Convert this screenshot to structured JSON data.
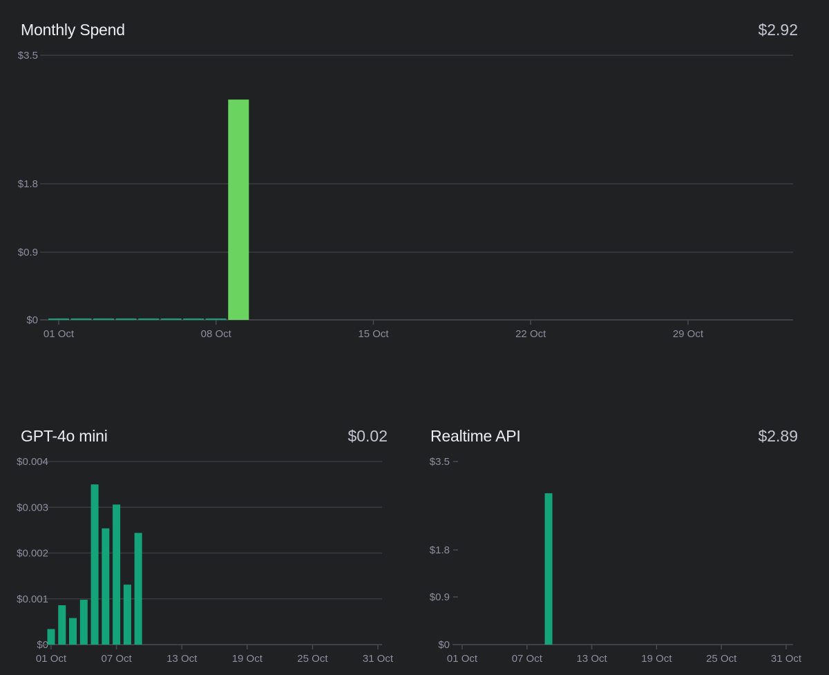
{
  "colors": {
    "background": "#202123",
    "grid": "#3a3b42",
    "axis": "#4a4b53",
    "tick_text": "#8e8ea0",
    "highlight_bar": "#6bd35f",
    "series_bar": "#15a37a"
  },
  "chart_data": [
    {
      "type": "bar",
      "title": "Monthly Spend",
      "total_label": "$2.92",
      "y_ticks": [
        "$0",
        "$0.9",
        "$1.8",
        "$3.5"
      ],
      "y_tick_values": [
        0,
        0.9,
        1.8,
        3.5
      ],
      "ylim": [
        0,
        3.5
      ],
      "x_ticks": [
        "01 Oct",
        "08 Oct",
        "15 Oct",
        "22 Oct",
        "29 Oct"
      ],
      "x_tick_days": [
        1,
        8,
        15,
        22,
        29
      ],
      "xlim_days": [
        1,
        31
      ],
      "grid": true,
      "legend": "none",
      "series": [
        {
          "days": [
            1,
            2,
            3,
            4,
            5,
            6,
            7,
            8,
            9
          ],
          "values": [
            0.0003,
            0.0008,
            0.0006,
            0.001,
            0.0035,
            0.0025,
            0.003,
            0.0013,
            2.914
          ]
        }
      ],
      "highlight_day": 9
    },
    {
      "type": "bar",
      "title": "GPT-4o mini",
      "total_label": "$0.02",
      "y_ticks": [
        "$0",
        "$0.001",
        "$0.002",
        "$0.003",
        "$0.004"
      ],
      "y_tick_values": [
        0,
        0.001,
        0.002,
        0.003,
        0.004
      ],
      "ylim": [
        0,
        0.004
      ],
      "x_ticks": [
        "01 Oct",
        "07 Oct",
        "13 Oct",
        "19 Oct",
        "25 Oct",
        "31 Oct"
      ],
      "x_tick_days": [
        1,
        7,
        13,
        19,
        25,
        31
      ],
      "xlim_days": [
        1,
        31
      ],
      "grid": true,
      "legend": "none",
      "series": [
        {
          "days": [
            1,
            2,
            3,
            4,
            5,
            6,
            7,
            8,
            9
          ],
          "values": [
            0.00034,
            0.00086,
            0.00058,
            0.00098,
            0.0035,
            0.00254,
            0.00306,
            0.00131,
            0.00244
          ]
        }
      ]
    },
    {
      "type": "bar",
      "title": "Realtime API",
      "total_label": "$2.89",
      "y_ticks": [
        "$0",
        "$0.9",
        "$1.8",
        "$3.5"
      ],
      "y_tick_values": [
        0,
        0.9,
        1.8,
        3.5
      ],
      "ylim": [
        0,
        3.5
      ],
      "x_ticks": [
        "01 Oct",
        "07 Oct",
        "13 Oct",
        "19 Oct",
        "25 Oct",
        "31 Oct"
      ],
      "x_tick_days": [
        1,
        7,
        13,
        19,
        25,
        31
      ],
      "xlim_days": [
        1,
        31
      ],
      "grid": false,
      "legend": "none",
      "series": [
        {
          "days": [
            9
          ],
          "values": [
            2.89
          ]
        }
      ]
    }
  ]
}
